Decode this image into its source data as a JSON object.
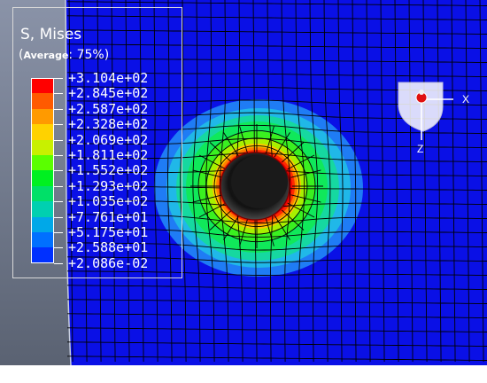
{
  "legend": {
    "title": "S, Mises",
    "average_prefix": "(",
    "average_label": "Average",
    "average_suffix": ": 75%)",
    "values": [
      "+3.104e+02",
      "+2.845e+02",
      "+2.587e+02",
      "+2.328e+02",
      "+2.069e+02",
      "+1.811e+02",
      "+1.552e+02",
      "+1.293e+02",
      "+1.035e+02",
      "+7.761e+01",
      "+5.175e+01",
      "+2.588e+01",
      "+2.086e-02"
    ],
    "colors": [
      "#ff0000",
      "#ff5a00",
      "#ff9a00",
      "#ffd200",
      "#c8f000",
      "#5aff00",
      "#00f020",
      "#00e068",
      "#00d0b0",
      "#00a8e8",
      "#0070ff",
      "#0030ff"
    ]
  },
  "triad": {
    "x_label": "X",
    "z_label": "Z"
  },
  "colors": {
    "background_mesh": "#0a10e6",
    "mesh_lines": "#000000",
    "hole": "#141414"
  }
}
